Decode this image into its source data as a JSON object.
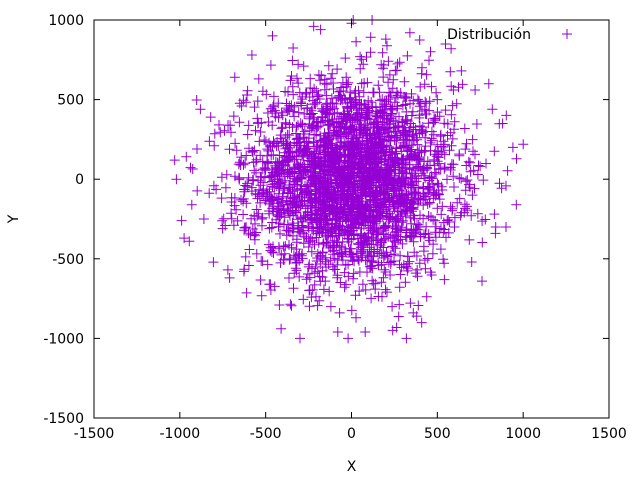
{
  "chart_data": {
    "type": "scatter",
    "title": "",
    "xlabel": "X",
    "ylabel": "Y",
    "xlim": [
      -1500,
      1500
    ],
    "ylim": [
      -1500,
      1000
    ],
    "xticks": [
      -1500,
      -1000,
      -500,
      0,
      500,
      1000,
      1500
    ],
    "yticks": [
      -1500,
      -1000,
      -500,
      0,
      500,
      1000
    ],
    "xtick_labels": [
      "-1500",
      "-1000",
      "-500",
      "0",
      "500",
      "1000",
      "1500"
    ],
    "ytick_labels": [
      "-1500",
      "-1000",
      "-500",
      "0",
      "500",
      "1000"
    ],
    "grid": false,
    "legend": "top-right",
    "marker": "plus",
    "series": [
      {
        "name": "Distribución",
        "color": "#9400d3",
        "distribution": {
          "type": "gaussian-cluster",
          "count": 3000,
          "center": [
            0,
            0
          ],
          "std_x": 300,
          "std_y": 300,
          "max_extent": 1030
        },
        "points": [
          [
            -1030,
            120
          ],
          [
            -1020,
            0
          ],
          [
            -990,
            -260
          ],
          [
            -975,
            -370
          ],
          [
            -945,
            -390
          ],
          [
            -930,
            -160
          ],
          [
            -900,
            190
          ],
          [
            -880,
            440
          ],
          [
            -860,
            -250
          ],
          [
            -820,
            390
          ],
          [
            -800,
            210
          ],
          [
            -720,
            -570
          ],
          [
            -710,
            -620
          ],
          [
            -680,
            640
          ],
          [
            -640,
            460
          ],
          [
            -600,
            -340
          ],
          [
            -580,
            780
          ],
          [
            -540,
            630
          ],
          [
            -460,
            900
          ],
          [
            -420,
            -790
          ],
          [
            -410,
            -940
          ],
          [
            -300,
            -1000
          ],
          [
            -230,
            -560
          ],
          [
            -220,
            960
          ],
          [
            -180,
            940
          ],
          [
            -120,
            -800
          ],
          [
            -80,
            -960
          ],
          [
            -20,
            -1000
          ],
          [
            0,
            980
          ],
          [
            10,
            1000
          ],
          [
            80,
            -960
          ],
          [
            120,
            1000
          ],
          [
            200,
            880
          ],
          [
            240,
            -950
          ],
          [
            320,
            -1000
          ],
          [
            340,
            920
          ],
          [
            360,
            -840
          ],
          [
            380,
            -860
          ],
          [
            400,
            580
          ],
          [
            460,
            800
          ],
          [
            500,
            500
          ],
          [
            580,
            820
          ],
          [
            600,
            -300
          ],
          [
            640,
            680
          ],
          [
            700,
            -520
          ],
          [
            720,
            560
          ],
          [
            760,
            -640
          ],
          [
            800,
            600
          ],
          [
            820,
            440
          ],
          [
            840,
            -300
          ],
          [
            880,
            350
          ],
          [
            900,
            -300
          ],
          [
            940,
            200
          ],
          [
            960,
            -160
          ],
          [
            1000,
            220
          ]
        ]
      }
    ]
  }
}
